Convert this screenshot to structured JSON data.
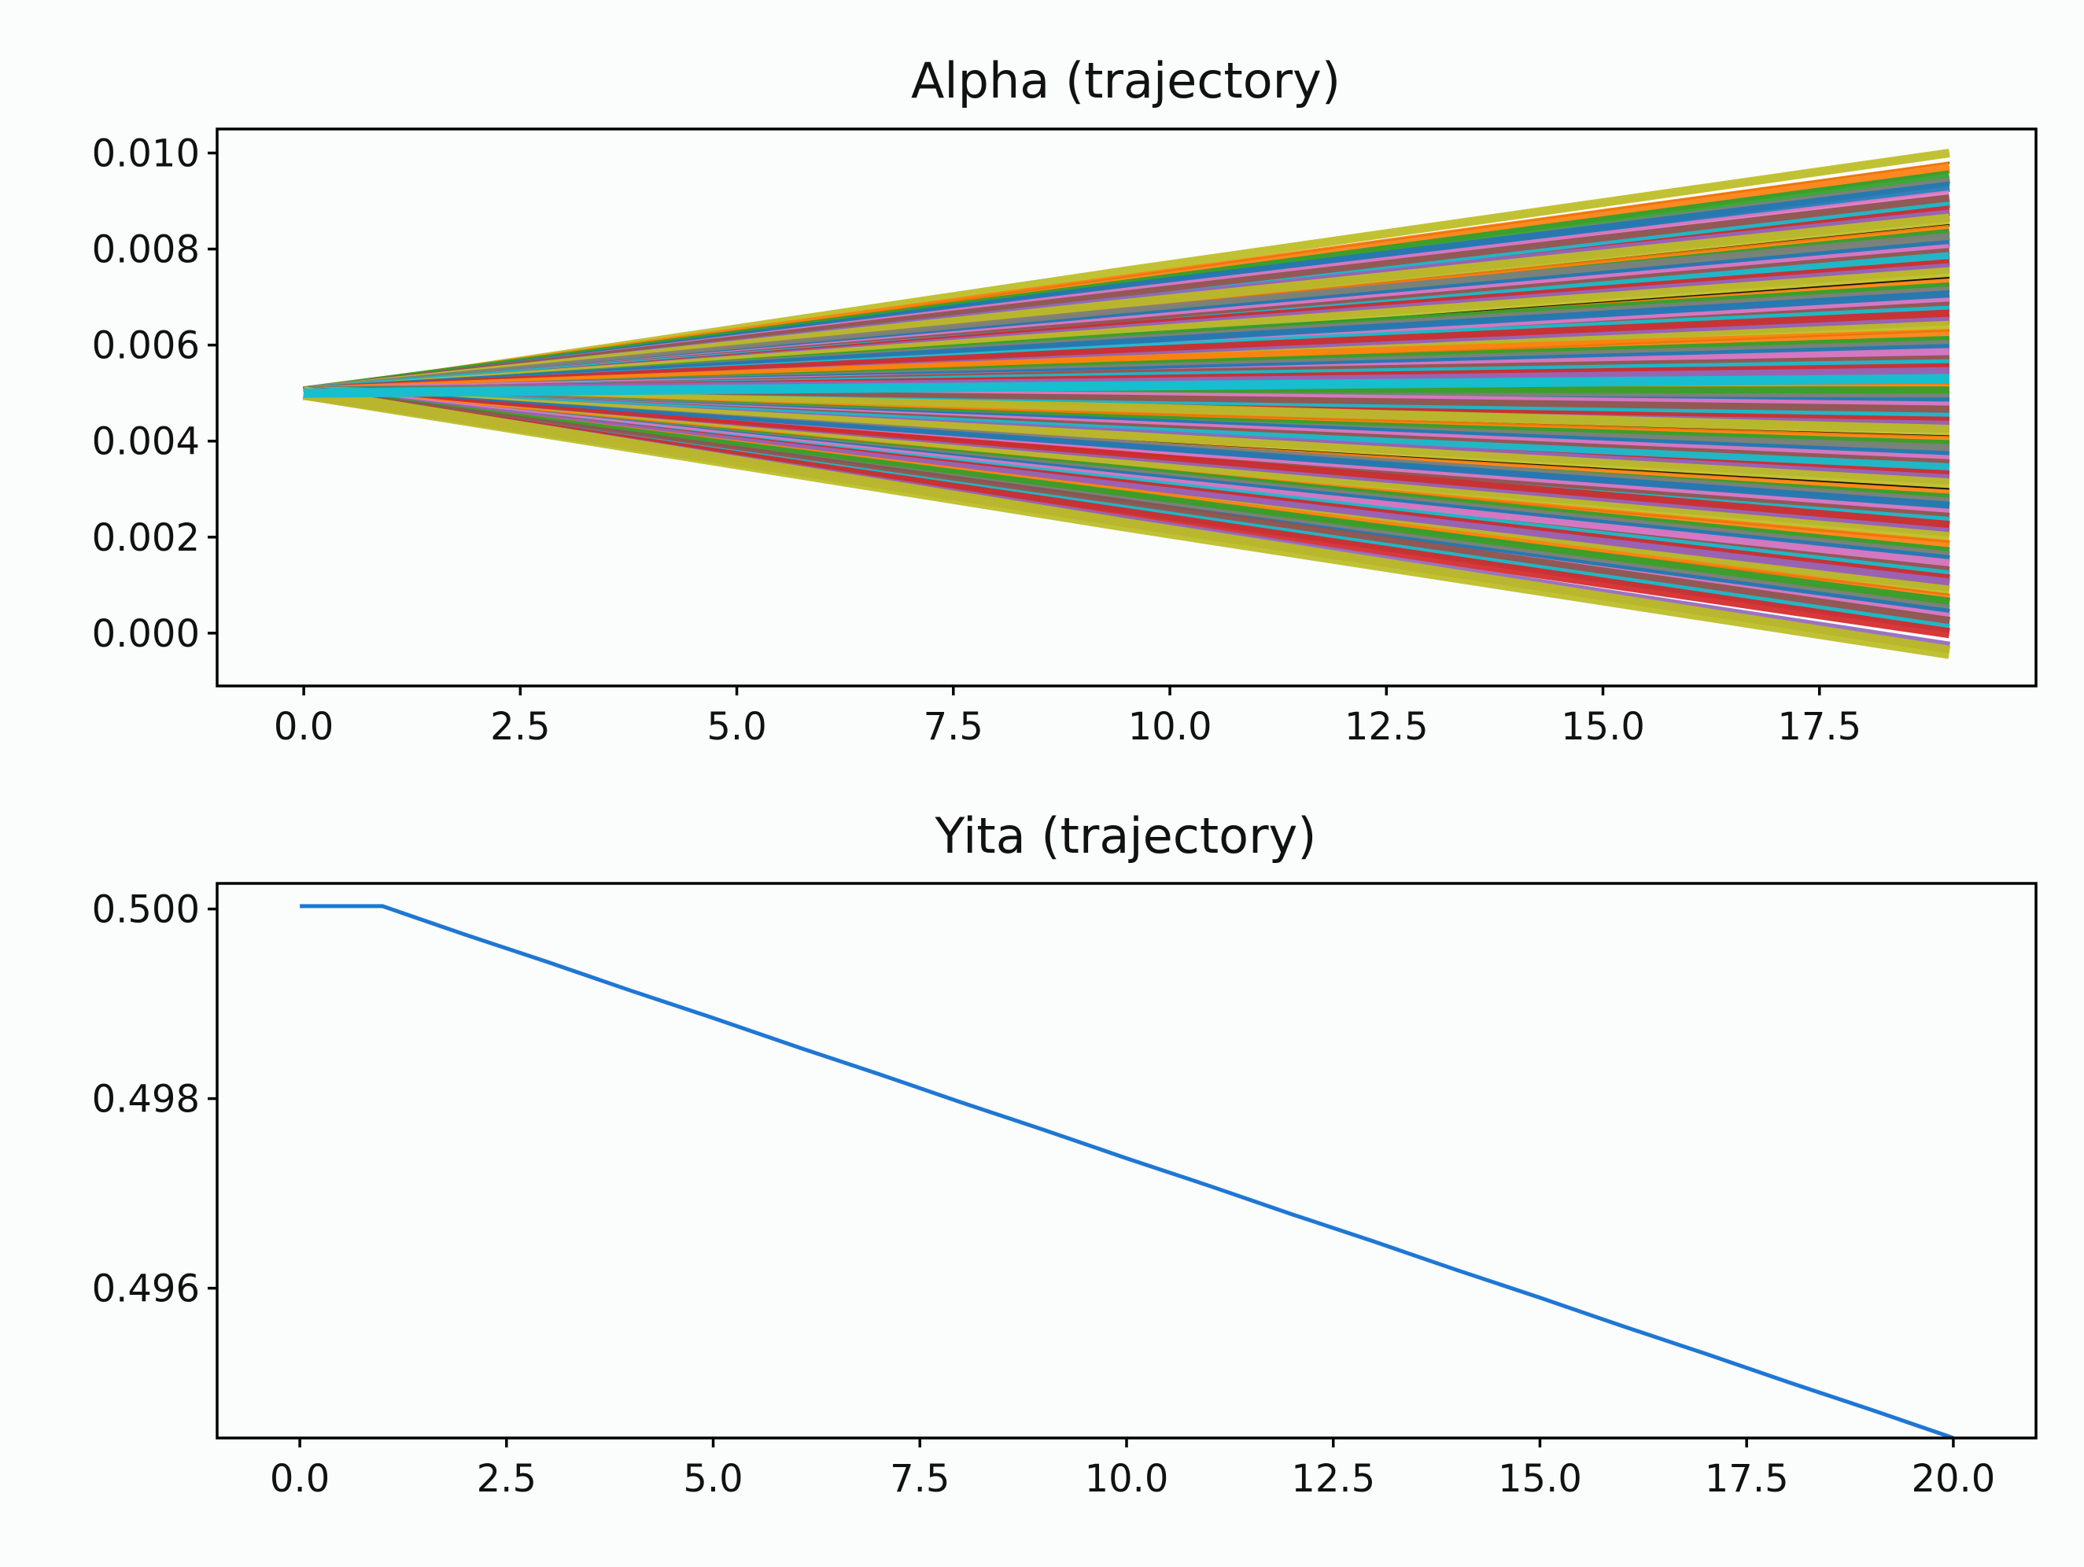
{
  "figure": {
    "background": "#fbfcfc"
  },
  "chart_data": [
    {
      "type": "line",
      "title": "Alpha (trajectory)",
      "xlabel": "",
      "ylabel": "",
      "xlim": [
        -1.0,
        20.0
      ],
      "ylim": [
        -0.0011,
        0.0105
      ],
      "xticks": [
        0.0,
        2.5,
        5.0,
        7.5,
        10.0,
        12.5,
        15.0,
        17.5
      ],
      "xtick_labels": [
        "0.0",
        "2.5",
        "5.0",
        "7.5",
        "10.0",
        "12.5",
        "15.0",
        "17.5"
      ],
      "yticks": [
        0.0,
        0.002,
        0.004,
        0.006,
        0.008,
        0.01
      ],
      "ytick_labels": [
        "0.000",
        "0.002",
        "0.004",
        "0.006",
        "0.008",
        "0.010"
      ],
      "grid": false,
      "x_start": 0,
      "x_end": 19,
      "start_value": 0.005,
      "series_note": "many trajectories fanning out linearly from 0.005",
      "end_values": [
        0.01,
        0.0098,
        0.0097,
        0.0095,
        0.0094,
        0.0093,
        0.0091,
        0.009,
        0.0089,
        0.0088,
        0.0087,
        0.0086,
        0.0085,
        0.0084,
        0.0083,
        0.0082,
        0.0081,
        0.008,
        0.0079,
        0.0078,
        0.0077,
        0.0076,
        0.0075,
        0.0074,
        0.0073,
        0.0072,
        0.0071,
        0.007,
        0.0069,
        0.0068,
        0.0067,
        0.0066,
        0.0065,
        0.0064,
        0.0063,
        0.0062,
        0.0061,
        0.006,
        0.0059,
        0.0058,
        0.0057,
        0.0056,
        0.0055,
        0.0054,
        0.0053,
        0.0052,
        0.0051,
        0.005,
        0.0049,
        0.0048,
        0.0047,
        0.0046,
        0.0045,
        0.0044,
        0.0043,
        0.0042,
        0.0041,
        0.004,
        0.0039,
        0.0038,
        0.0037,
        0.0036,
        0.0035,
        0.0034,
        0.0033,
        0.0032,
        0.0031,
        0.003,
        0.0029,
        0.0028,
        0.0027,
        0.0026,
        0.0025,
        0.0024,
        0.0023,
        0.0022,
        0.0021,
        0.002,
        0.0019,
        0.0018,
        0.0017,
        0.0016,
        0.0015,
        0.0014,
        0.0013,
        0.0012,
        0.0011,
        0.001,
        0.0009,
        0.0008,
        0.0007,
        0.0006,
        0.0005,
        0.0004,
        0.0003,
        0.0002,
        0.0001,
        0.0,
        -0.0003,
        -0.0004
      ],
      "colors": [
        "#d62728",
        "#e377c2",
        "#2ca02c",
        "#bcbd22",
        "#17becf",
        "#1f77b4",
        "#ff7f0e",
        "#9467bd",
        "#8c564b",
        "#7f7f7f",
        "#000000"
      ]
    },
    {
      "type": "line",
      "title": "Yita (trajectory)",
      "xlabel": "",
      "ylabel": "",
      "xlim": [
        -1.0,
        21.0
      ],
      "ylim": [
        0.49442,
        0.50027
      ],
      "xticks": [
        0.0,
        2.5,
        5.0,
        7.5,
        10.0,
        12.5,
        15.0,
        17.5,
        20.0
      ],
      "xtick_labels": [
        "0.0",
        "2.5",
        "5.0",
        "7.5",
        "10.0",
        "12.5",
        "15.0",
        "17.5",
        "20.0"
      ],
      "yticks": [
        0.496,
        0.498,
        0.5
      ],
      "ytick_labels": [
        "0.496",
        "0.498",
        "0.500"
      ],
      "grid": false,
      "series": [
        {
          "name": "yita",
          "color": "#1f77d4",
          "x": [
            0,
            1,
            2,
            3,
            4,
            5,
            6,
            7,
            8,
            9,
            10,
            11,
            12,
            13,
            14,
            15,
            16,
            17,
            18,
            19,
            20
          ],
          "values": [
            0.50003,
            0.50003,
            0.49973,
            0.49944,
            0.49914,
            0.49885,
            0.49855,
            0.49826,
            0.49796,
            0.49767,
            0.49737,
            0.49708,
            0.49678,
            0.49649,
            0.49619,
            0.4959,
            0.4956,
            0.49531,
            0.49501,
            0.49472,
            0.49442
          ]
        }
      ]
    }
  ]
}
